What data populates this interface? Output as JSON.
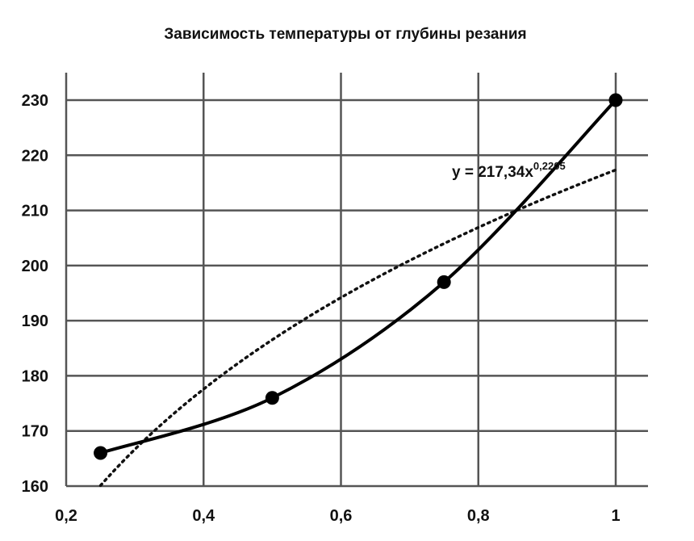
{
  "chart_data": {
    "type": "scatter",
    "title": "Зависимость температуры от глубины резания",
    "xlabel": "",
    "ylabel": "",
    "xlim": [
      0.2,
      1
    ],
    "ylim": [
      160,
      230
    ],
    "x_ticks": [
      0.2,
      0.4,
      0.6,
      0.8,
      1
    ],
    "x_tick_labels": [
      "0,2",
      "0,4",
      "0,6",
      "0,8",
      "1"
    ],
    "y_ticks": [
      160,
      170,
      180,
      190,
      200,
      210,
      220,
      230
    ],
    "y_tick_labels": [
      "160",
      "170",
      "180",
      "190",
      "200",
      "210",
      "220",
      "230"
    ],
    "grid": true,
    "series": [
      {
        "style": "smoothed line with markers",
        "color": "#000000",
        "x": [
          0.25,
          0.5,
          0.75,
          1
        ],
        "y": [
          166,
          176,
          197,
          230
        ]
      }
    ],
    "trendline": {
      "type": "power",
      "coefficient": 217.34,
      "exponent": 0.2205,
      "style": "dotted",
      "color": "#000000"
    },
    "annotations": [
      {
        "base": "y = 217,34x",
        "superscript": "0,2205"
      }
    ]
  }
}
